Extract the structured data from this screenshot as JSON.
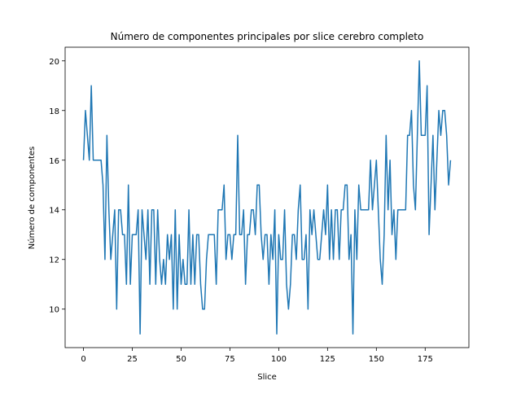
{
  "chart_data": {
    "type": "line",
    "title": "Número de componentes principales por slice cerebro completo",
    "x_label": "Slice",
    "y_label": "Número de componentes",
    "x": [
      0,
      1,
      2,
      3,
      4,
      5,
      6,
      7,
      8,
      9,
      10,
      11,
      12,
      13,
      14,
      15,
      16,
      17,
      18,
      19,
      20,
      21,
      22,
      23,
      24,
      25,
      26,
      27,
      28,
      29,
      30,
      31,
      32,
      33,
      34,
      35,
      36,
      37,
      38,
      39,
      40,
      41,
      42,
      43,
      44,
      45,
      46,
      47,
      48,
      49,
      50,
      51,
      52,
      53,
      54,
      55,
      56,
      57,
      58,
      59,
      60,
      61,
      62,
      63,
      64,
      65,
      66,
      67,
      68,
      69,
      70,
      71,
      72,
      73,
      74,
      75,
      76,
      77,
      78,
      79,
      80,
      81,
      82,
      83,
      84,
      85,
      86,
      87,
      88,
      89,
      90,
      91,
      92,
      93,
      94,
      95,
      96,
      97,
      98,
      99,
      100,
      101,
      102,
      103,
      104,
      105,
      106,
      107,
      108,
      109,
      110,
      111,
      112,
      113,
      114,
      115,
      116,
      117,
      118,
      119,
      120,
      121,
      122,
      123,
      124,
      125,
      126,
      127,
      128,
      129,
      130,
      131,
      132,
      133,
      134,
      135,
      136,
      137,
      138,
      139,
      140,
      141,
      142,
      143,
      144,
      145,
      146,
      147,
      148,
      149,
      150,
      151,
      152,
      153,
      154,
      155,
      156,
      157,
      158,
      159,
      160,
      161,
      162,
      163,
      164,
      165,
      166,
      167,
      168,
      169,
      170,
      171,
      172,
      173,
      174,
      175,
      176,
      177,
      178,
      179,
      180,
      181,
      182,
      183,
      184,
      185,
      186,
      187,
      188
    ],
    "values": [
      16,
      18,
      17,
      16,
      19,
      16,
      16,
      16,
      16,
      16,
      15,
      12,
      17,
      14,
      12,
      13,
      14,
      10,
      14,
      14,
      13,
      13,
      11,
      15,
      11,
      13,
      13,
      13,
      14,
      9,
      14,
      13,
      12,
      14,
      11,
      14,
      14,
      11,
      14,
      12,
      11,
      12,
      11,
      13,
      12,
      13,
      10,
      14,
      10,
      13,
      11,
      12,
      11,
      11,
      14,
      11,
      13,
      11,
      13,
      13,
      11,
      10,
      10,
      12,
      13,
      13,
      13,
      13,
      11,
      14,
      14,
      14,
      15,
      12,
      13,
      13,
      12,
      13,
      13,
      17,
      13,
      13,
      14,
      11,
      13,
      13,
      14,
      14,
      13,
      15,
      15,
      13,
      12,
      13,
      13,
      11,
      13,
      12,
      14,
      9,
      13,
      12,
      12,
      14,
      11,
      10,
      11,
      13,
      13,
      12,
      14,
      15,
      12,
      12,
      13,
      10,
      14,
      13,
      14,
      13,
      12,
      12,
      13,
      14,
      13,
      15,
      12,
      14,
      12,
      14,
      14,
      12,
      14,
      14,
      15,
      15,
      12,
      13,
      9,
      14,
      12,
      15,
      14,
      14,
      14,
      14,
      14,
      16,
      14,
      15,
      16,
      14,
      12,
      11,
      13,
      17,
      14,
      16,
      13,
      14,
      12,
      14,
      14,
      14,
      14,
      14,
      17,
      17,
      18,
      15,
      14,
      17,
      20,
      17,
      17,
      17,
      19,
      13,
      15,
      17,
      14,
      16,
      18,
      17,
      18,
      18,
      17,
      15,
      16
    ],
    "color": "#1f77b4",
    "xlim": [
      -9.4,
      197.4
    ],
    "xticks": [
      0,
      25,
      50,
      75,
      100,
      125,
      150,
      175
    ],
    "ylim": [
      8.45,
      20.55
    ],
    "yticks": [
      10,
      12,
      14,
      16,
      18,
      20
    ]
  }
}
